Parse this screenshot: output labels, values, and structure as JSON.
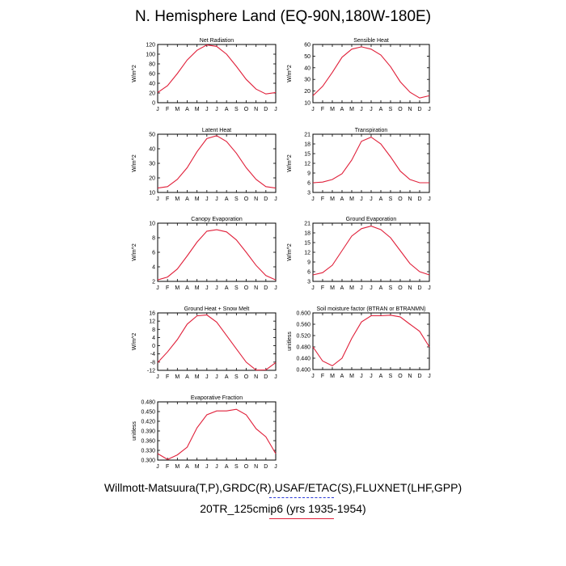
{
  "page": {
    "title": "N. Hemisphere Land (EQ-90N,180W-180E)",
    "footer_line1": "Willmott-Matsuura(T,P),GRDC(R),USAF/ETAC(S),FLUXNET(LHF,GPP)",
    "footer_line2": "20TR_125cmip6 (yrs 1935-1954)",
    "colors": {
      "model_line": "#e0203a",
      "obs_legend": "#2a3ad8",
      "axis": "#000000"
    }
  },
  "chart_data": [
    {
      "type": "line",
      "title": "Net Radiation",
      "ylabel": "W/m^2",
      "categories": [
        "J",
        "F",
        "M",
        "A",
        "M",
        "J",
        "J",
        "A",
        "S",
        "O",
        "N",
        "D",
        "J"
      ],
      "ylim": [
        0,
        120
      ],
      "yticks": [
        "0",
        "20",
        "40",
        "60",
        "80",
        "100",
        "120"
      ],
      "series": [
        {
          "values": [
            21,
            35,
            60,
            88,
            108,
            119,
            116,
            100,
            75,
            48,
            28,
            18,
            21
          ]
        }
      ]
    },
    {
      "type": "line",
      "title": "Sensible Heat",
      "ylabel": "W/m^2",
      "categories": [
        "J",
        "F",
        "M",
        "A",
        "M",
        "J",
        "J",
        "A",
        "S",
        "O",
        "N",
        "D",
        "J"
      ],
      "ylim": [
        10,
        60
      ],
      "yticks": [
        "10",
        "20",
        "30",
        "40",
        "50",
        "60"
      ],
      "series": [
        {
          "values": [
            16,
            24,
            36,
            49,
            56,
            58,
            56,
            51,
            41,
            28,
            19,
            14,
            16
          ]
        }
      ]
    },
    {
      "type": "line",
      "title": "Latent Heat",
      "ylabel": "W/m^2",
      "categories": [
        "J",
        "F",
        "M",
        "A",
        "M",
        "J",
        "J",
        "A",
        "S",
        "O",
        "N",
        "D",
        "J"
      ],
      "ylim": [
        10,
        50
      ],
      "yticks": [
        "10",
        "20",
        "30",
        "40",
        "50"
      ],
      "series": [
        {
          "values": [
            13,
            14,
            19,
            27,
            38,
            47,
            49,
            45,
            37,
            27,
            19,
            14,
            13
          ]
        }
      ]
    },
    {
      "type": "line",
      "title": "Transpiration",
      "ylabel": "W/m^2",
      "categories": [
        "J",
        "F",
        "M",
        "A",
        "M",
        "J",
        "J",
        "A",
        "S",
        "O",
        "N",
        "D",
        "J"
      ],
      "ylim": [
        3,
        21
      ],
      "yticks": [
        "3",
        "6",
        "9",
        "12",
        "15",
        "18",
        "21"
      ],
      "series": [
        {
          "values": [
            6,
            6.2,
            7,
            8.8,
            13,
            18.8,
            20.1,
            18,
            14,
            9.6,
            7,
            6,
            6
          ]
        }
      ]
    },
    {
      "type": "line",
      "title": "Canopy Evaporation",
      "ylabel": "W/m^2",
      "categories": [
        "J",
        "F",
        "M",
        "A",
        "M",
        "J",
        "J",
        "A",
        "S",
        "O",
        "N",
        "D",
        "J"
      ],
      "ylim": [
        2,
        10
      ],
      "yticks": [
        "2",
        "4",
        "6",
        "8",
        "10"
      ],
      "series": [
        {
          "values": [
            2.2,
            2.6,
            3.7,
            5.5,
            7.4,
            8.9,
            9.1,
            8.8,
            7.7,
            6,
            4.2,
            2.8,
            2.2
          ]
        }
      ]
    },
    {
      "type": "line",
      "title": "Ground Evaporation",
      "ylabel": "W/m^2",
      "categories": [
        "J",
        "F",
        "M",
        "A",
        "M",
        "J",
        "J",
        "A",
        "S",
        "O",
        "N",
        "D",
        "J"
      ],
      "ylim": [
        3,
        21
      ],
      "yticks": [
        "3",
        "6",
        "9",
        "12",
        "15",
        "18",
        "21"
      ],
      "series": [
        {
          "values": [
            5,
            5.7,
            8,
            12.5,
            17,
            19.3,
            20.1,
            19,
            16.5,
            12.5,
            8.5,
            6,
            5
          ]
        }
      ]
    },
    {
      "type": "line",
      "title": "Ground Heat + Snow Melt",
      "ylabel": "W/m^2",
      "categories": [
        "J",
        "F",
        "M",
        "A",
        "M",
        "J",
        "J",
        "A",
        "S",
        "O",
        "N",
        "D",
        "J"
      ],
      "ylim": [
        -12,
        16
      ],
      "yticks": [
        "-12",
        "-8",
        "-4",
        "0",
        "4",
        "8",
        "12",
        "16"
      ],
      "series": [
        {
          "values": [
            -8.2,
            -3,
            3,
            10.5,
            14.6,
            15,
            11.5,
            5,
            -1.5,
            -8,
            -11.9,
            -11.8,
            -8.2
          ]
        }
      ]
    },
    {
      "type": "line",
      "title": "Soil moisture factor (BTRAN or BTRANMN)",
      "ylabel": "unitless",
      "categories": [
        "J",
        "F",
        "M",
        "A",
        "M",
        "J",
        "J",
        "A",
        "S",
        "O",
        "N",
        "D",
        "J"
      ],
      "ylim": [
        0.4,
        0.6
      ],
      "yticks": [
        "0.400",
        "0.440",
        "0.480",
        "0.520",
        "0.560",
        "0.600"
      ],
      "series": [
        {
          "values": [
            0.48,
            0.43,
            0.413,
            0.44,
            0.51,
            0.568,
            0.59,
            0.59,
            0.592,
            0.586,
            0.56,
            0.535,
            0.48
          ]
        }
      ]
    },
    {
      "type": "line",
      "title": "Evaporative Fraction",
      "ylabel": "unitless",
      "categories": [
        "J",
        "F",
        "M",
        "A",
        "M",
        "J",
        "J",
        "A",
        "S",
        "O",
        "N",
        "D",
        "J"
      ],
      "ylim": [
        0.3,
        0.48
      ],
      "yticks": [
        "0.300",
        "0.330",
        "0.360",
        "0.390",
        "0.420",
        "0.450",
        "0.480"
      ],
      "series": [
        {
          "values": [
            0.32,
            0.302,
            0.316,
            0.34,
            0.4,
            0.44,
            0.452,
            0.452,
            0.457,
            0.44,
            0.397,
            0.372,
            0.32
          ]
        }
      ]
    }
  ]
}
